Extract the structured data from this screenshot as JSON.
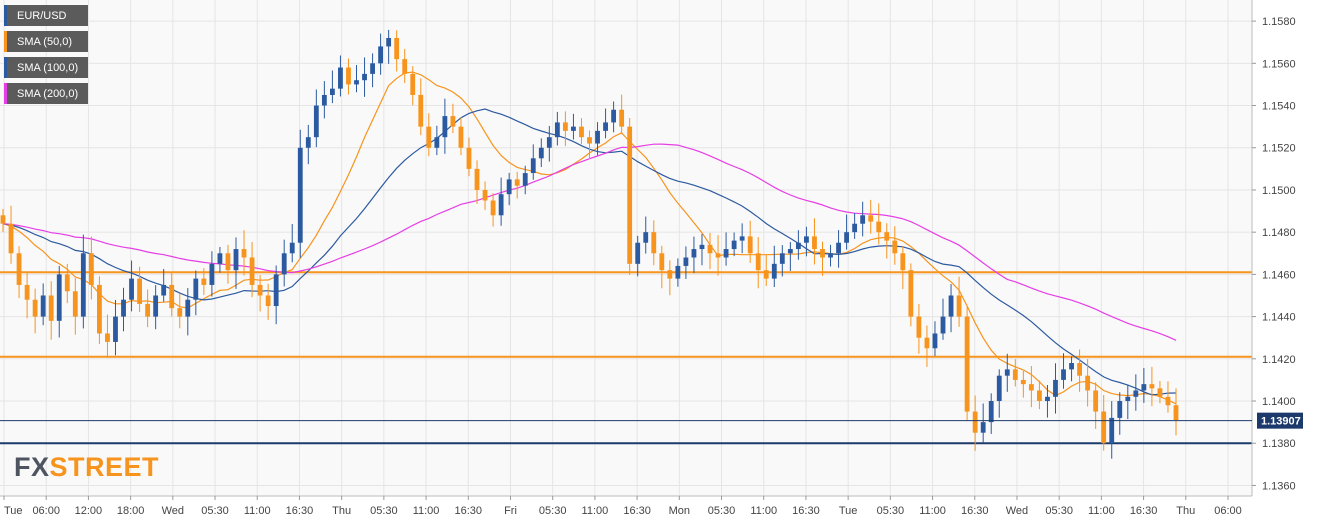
{
  "symbol": "EUR/USD",
  "legend": [
    {
      "label": "EUR/USD",
      "color": "#2c5aa0"
    },
    {
      "label": "SMA (50,0)",
      "color": "#f7941d"
    },
    {
      "label": "SMA (100,0)",
      "color": "#2c5aa0"
    },
    {
      "label": "SMA (200,0)",
      "color": "#e63ee6"
    }
  ],
  "watermark": {
    "fx": "FX",
    "street": "STREET"
  },
  "colors": {
    "up": "#2c5aa0",
    "down": "#f7941d",
    "sma50": "#f7941d",
    "sma100": "#2c5aa0",
    "sma200": "#e63ee6",
    "level": "#f7941d",
    "grid": "#e5e5e5",
    "price_tag": "#1b3a6b"
  },
  "chart_data": {
    "type": "candlestick",
    "ylim": [
      1.1355,
      1.159
    ],
    "y_ticks": [
      "1.1580",
      "1.1560",
      "1.1540",
      "1.1520",
      "1.1500",
      "1.1480",
      "1.1460",
      "1.1440",
      "1.1420",
      "1.1400",
      "1.1380",
      "1.1360"
    ],
    "x_ticks": [
      "Tue",
      "06:00",
      "12:00",
      "18:00",
      "Wed",
      "05:30",
      "11:00",
      "16:30",
      "Thu",
      "05:30",
      "11:00",
      "16:30",
      "Fri",
      "05:30",
      "11:00",
      "16:30",
      "Mon",
      "05:30",
      "11:00",
      "16:30",
      "Tue",
      "05:30",
      "11:00",
      "16:30",
      "Wed",
      "05:30",
      "11:00",
      "16:30",
      "Thu",
      "06:00"
    ],
    "horizontal_levels": [
      {
        "value": 1.1461,
        "color": "orange"
      },
      {
        "value": 1.1421,
        "color": "orange"
      },
      {
        "value": 1.138,
        "color": "navy"
      }
    ],
    "current_price": 1.13907,
    "current_price_label": "1.13907",
    "close_path": [
      1.1484,
      1.147,
      1.1455,
      1.1448,
      1.144,
      1.145,
      1.1438,
      1.146,
      1.1452,
      1.144,
      1.147,
      1.1455,
      1.1432,
      1.1428,
      1.144,
      1.1448,
      1.1458,
      1.1446,
      1.144,
      1.145,
      1.1455,
      1.1444,
      1.144,
      1.1448,
      1.1458,
      1.1455,
      1.1465,
      1.147,
      1.1462,
      1.1472,
      1.1468,
      1.1455,
      1.145,
      1.1445,
      1.146,
      1.147,
      1.1475,
      1.152,
      1.1525,
      1.154,
      1.1545,
      1.1548,
      1.1558,
      1.155,
      1.1552,
      1.1555,
      1.156,
      1.1568,
      1.1572,
      1.1562,
      1.1555,
      1.1545,
      1.153,
      1.152,
      1.1525,
      1.1535,
      1.153,
      1.152,
      1.151,
      1.15,
      1.1495,
      1.1488,
      1.1498,
      1.1505,
      1.1502,
      1.1508,
      1.1515,
      1.152,
      1.1525,
      1.1532,
      1.1528,
      1.153,
      1.1525,
      1.1522,
      1.1528,
      1.1532,
      1.1538,
      1.153,
      1.1465,
      1.1475,
      1.148,
      1.147,
      1.1462,
      1.1458,
      1.1464,
      1.1468,
      1.1472,
      1.1474,
      1.147,
      1.1468,
      1.1472,
      1.1476,
      1.1478,
      1.147,
      1.1462,
      1.1458,
      1.1465,
      1.147,
      1.1472,
      1.1475,
      1.1478,
      1.1472,
      1.1468,
      1.147,
      1.1475,
      1.148,
      1.1484,
      1.1488,
      1.1485,
      1.148,
      1.1476,
      1.147,
      1.1462,
      1.144,
      1.143,
      1.1425,
      1.1432,
      1.144,
      1.145,
      1.144,
      1.1395,
      1.1385,
      1.139,
      1.14,
      1.1412,
      1.1415,
      1.141,
      1.1408,
      1.1405,
      1.14,
      1.1402,
      1.141,
      1.1415,
      1.1418,
      1.1412,
      1.1405,
      1.1395,
      1.138,
      1.1392,
      1.14,
      1.1402,
      1.1405,
      1.1408,
      1.1406,
      1.1402,
      1.1398,
      1.1391
    ]
  }
}
